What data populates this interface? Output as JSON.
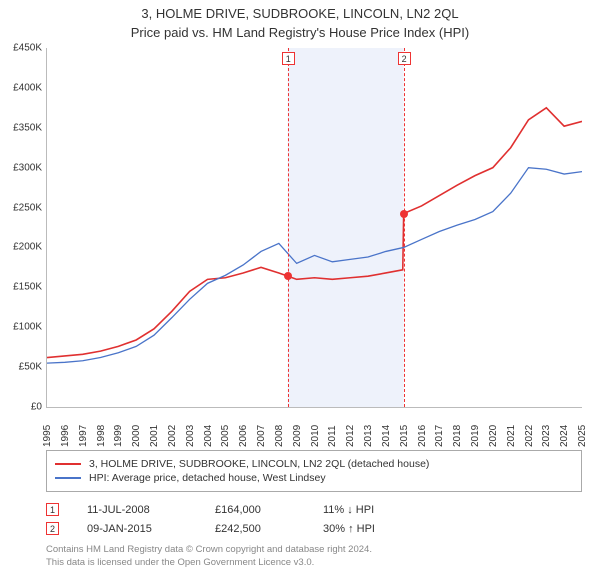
{
  "title": "3, HOLME DRIVE, SUDBROOKE, LINCOLN, LN2 2QL",
  "subtitle": "Price paid vs. HM Land Registry's House Price Index (HPI)",
  "chart": {
    "type": "line",
    "background_color": "#ffffff",
    "grid_color": "#e0e0e0",
    "axis_color": "#bbbbbb",
    "y": {
      "min": 0,
      "max": 450000,
      "step": 50000,
      "prefix": "£",
      "suffix": "K",
      "ticks": [
        "£0",
        "£50K",
        "£100K",
        "£150K",
        "£200K",
        "£250K",
        "£300K",
        "£350K",
        "£400K",
        "£450K"
      ]
    },
    "x": {
      "min": 1995,
      "max": 2025,
      "ticks": [
        1995,
        1996,
        1997,
        1998,
        1999,
        2000,
        2001,
        2002,
        2003,
        2004,
        2005,
        2006,
        2007,
        2008,
        2009,
        2010,
        2011,
        2012,
        2013,
        2014,
        2015,
        2016,
        2017,
        2018,
        2019,
        2020,
        2021,
        2022,
        2023,
        2024,
        2025
      ]
    },
    "band": {
      "x_from": 2008.5,
      "x_to": 2015.0,
      "fill": "#eef2fb"
    },
    "markers": [
      {
        "idx": "1",
        "x": 2008.5,
        "y": 164000
      },
      {
        "idx": "2",
        "x": 2015.0,
        "y": 242500
      }
    ],
    "series": [
      {
        "name": "price_paid",
        "color": "#e03030",
        "width": 1.6,
        "points": [
          [
            1995,
            62000
          ],
          [
            1996,
            64000
          ],
          [
            1997,
            66000
          ],
          [
            1998,
            70000
          ],
          [
            1999,
            76000
          ],
          [
            2000,
            84000
          ],
          [
            2001,
            98000
          ],
          [
            2002,
            120000
          ],
          [
            2003,
            145000
          ],
          [
            2004,
            160000
          ],
          [
            2005,
            162000
          ],
          [
            2006,
            168000
          ],
          [
            2007,
            175000
          ],
          [
            2008,
            168000
          ],
          [
            2008.5,
            164000
          ],
          [
            2009,
            160000
          ],
          [
            2010,
            162000
          ],
          [
            2011,
            160000
          ],
          [
            2012,
            162000
          ],
          [
            2013,
            164000
          ],
          [
            2014,
            168000
          ],
          [
            2014.95,
            172000
          ],
          [
            2015.0,
            242500
          ],
          [
            2016,
            252000
          ],
          [
            2017,
            265000
          ],
          [
            2018,
            278000
          ],
          [
            2019,
            290000
          ],
          [
            2020,
            300000
          ],
          [
            2021,
            325000
          ],
          [
            2022,
            360000
          ],
          [
            2023,
            375000
          ],
          [
            2024,
            352000
          ],
          [
            2025,
            358000
          ]
        ]
      },
      {
        "name": "hpi",
        "color": "#4a74c9",
        "width": 1.3,
        "points": [
          [
            1995,
            55000
          ],
          [
            1996,
            56000
          ],
          [
            1997,
            58000
          ],
          [
            1998,
            62000
          ],
          [
            1999,
            68000
          ],
          [
            2000,
            76000
          ],
          [
            2001,
            90000
          ],
          [
            2002,
            112000
          ],
          [
            2003,
            135000
          ],
          [
            2004,
            155000
          ],
          [
            2005,
            165000
          ],
          [
            2006,
            178000
          ],
          [
            2007,
            195000
          ],
          [
            2008,
            205000
          ],
          [
            2009,
            180000
          ],
          [
            2010,
            190000
          ],
          [
            2011,
            182000
          ],
          [
            2012,
            185000
          ],
          [
            2013,
            188000
          ],
          [
            2014,
            195000
          ],
          [
            2015,
            200000
          ],
          [
            2016,
            210000
          ],
          [
            2017,
            220000
          ],
          [
            2018,
            228000
          ],
          [
            2019,
            235000
          ],
          [
            2020,
            245000
          ],
          [
            2021,
            268000
          ],
          [
            2022,
            300000
          ],
          [
            2023,
            298000
          ],
          [
            2024,
            292000
          ],
          [
            2025,
            295000
          ]
        ]
      }
    ]
  },
  "legend": {
    "rows": [
      {
        "color": "#e03030",
        "label": "3, HOLME DRIVE, SUDBROOKE, LINCOLN, LN2 2QL (detached house)"
      },
      {
        "color": "#4a74c9",
        "label": "HPI: Average price, detached house, West Lindsey"
      }
    ]
  },
  "transactions": [
    {
      "idx": "1",
      "date": "11-JUL-2008",
      "price": "£164,000",
      "delta": "11% ↓ HPI"
    },
    {
      "idx": "2",
      "date": "09-JAN-2015",
      "price": "£242,500",
      "delta": "30% ↑ HPI"
    }
  ],
  "footer": {
    "line1": "Contains HM Land Registry data © Crown copyright and database right 2024.",
    "line2": "This data is licensed under the Open Government Licence v3.0."
  }
}
